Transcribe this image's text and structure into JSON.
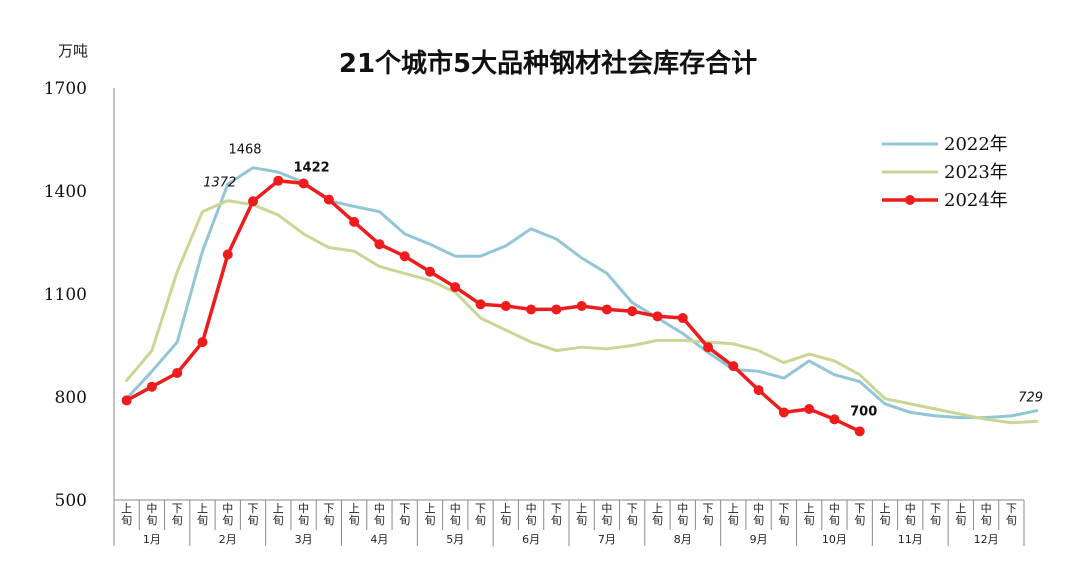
{
  "chart_data": {
    "type": "line",
    "title": "21个城市5大品种钢材社会库存合计",
    "unit_label": "万吨",
    "ylim": [
      500,
      1700
    ],
    "yticks": [
      500,
      800,
      1100,
      1400,
      1700
    ],
    "grid": false,
    "legend_position": "top-right",
    "periods": [
      "上旬",
      "中旬",
      "下旬"
    ],
    "months": [
      "1月",
      "2月",
      "3月",
      "4月",
      "5月",
      "6月",
      "7月",
      "8月",
      "9月",
      "10月",
      "11月",
      "12月"
    ],
    "series": [
      {
        "name": "2022年",
        "color": "#92C5D6",
        "values": [
          795,
          875,
          960,
          1225,
          1420,
          1468,
          1455,
          1425,
          1372,
          1355,
          1340,
          1275,
          1245,
          1210,
          1210,
          1240,
          1290,
          1260,
          1205,
          1160,
          1075,
          1030,
          985,
          930,
          880,
          875,
          855,
          905,
          865,
          845,
          780,
          755,
          745,
          740,
          740,
          745,
          760
        ]
      },
      {
        "name": "2023年",
        "color": "#C9D694",
        "values": [
          848,
          935,
          1165,
          1340,
          1372,
          1360,
          1330,
          1275,
          1235,
          1225,
          1180,
          1160,
          1140,
          1105,
          1030,
          995,
          960,
          935,
          945,
          940,
          950,
          965,
          965,
          960,
          955,
          935,
          900,
          925,
          905,
          865,
          795,
          780,
          765,
          750,
          735,
          725,
          729
        ]
      },
      {
        "name": "2024年",
        "color": "#EE1C1C",
        "values": [
          790,
          830,
          870,
          960,
          1215,
          1370,
          1430,
          1422,
          1375,
          1310,
          1245,
          1210,
          1165,
          1120,
          1070,
          1065,
          1055,
          1055,
          1065,
          1055,
          1050,
          1035,
          1030,
          945,
          890,
          820,
          755,
          765,
          735,
          700
        ]
      }
    ],
    "annotations": [
      {
        "series": 0,
        "index": 5,
        "text": "1468"
      },
      {
        "series": 1,
        "index": 4,
        "text": "1372"
      },
      {
        "series": 2,
        "index": 7,
        "text": "1422"
      },
      {
        "series": 2,
        "index": 29,
        "text": "700"
      },
      {
        "series": 1,
        "index": 36,
        "text": "729"
      }
    ]
  }
}
